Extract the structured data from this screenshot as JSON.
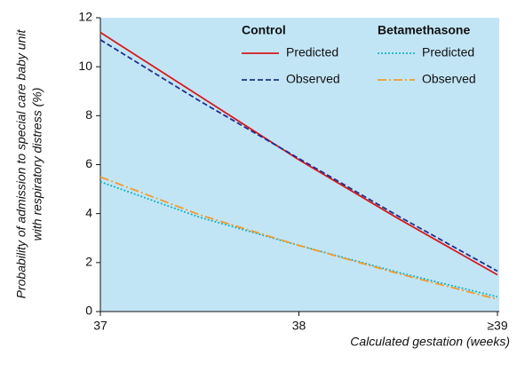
{
  "chart_data": {
    "type": "line",
    "ylabel": [
      "Probability of admission to special care baby unit",
      "with respiratory distress (%)"
    ],
    "xlabel": "Calculated gestation (weeks)",
    "x": [
      37,
      37.5,
      38,
      38.5,
      39
    ],
    "xlim": [
      37,
      39
    ],
    "xticks": [
      37,
      38,
      {
        "value": 39,
        "label": "≥39"
      }
    ],
    "ylim": [
      0,
      12
    ],
    "yticks": [
      0,
      2,
      4,
      6,
      8,
      10,
      12
    ],
    "grid": false,
    "background": "#c2e5f6",
    "groups": [
      {
        "name": "Control",
        "series": [
          {
            "name": "Predicted",
            "color": "#d7191c",
            "style": "solid",
            "values": [
              11.4,
              8.8,
              6.2,
              3.8,
              1.5
            ]
          },
          {
            "name": "Observed",
            "color": "#1f2f8f",
            "style": "dashed",
            "values": [
              11.1,
              8.6,
              6.25,
              3.9,
              1.65
            ]
          }
        ]
      },
      {
        "name": "Betamethasone",
        "series": [
          {
            "name": "Predicted",
            "color": "#17b3c1",
            "style": "dotted",
            "values": [
              5.3,
              3.85,
              2.7,
              1.6,
              0.6
            ]
          },
          {
            "name": "Observed",
            "color": "#f29a2e",
            "style": "dashdot",
            "values": [
              5.5,
              3.95,
              2.7,
              1.55,
              0.5
            ]
          }
        ]
      }
    ]
  }
}
